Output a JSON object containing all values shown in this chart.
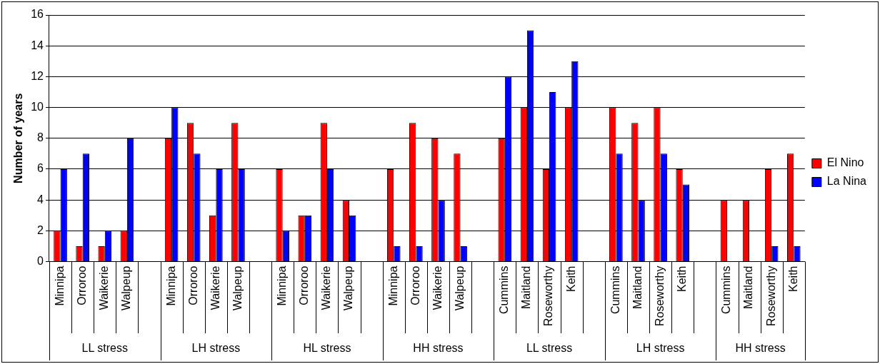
{
  "chart_data": {
    "type": "bar",
    "ylabel": "Number of years",
    "categories": [
      "Minnipa",
      "Orroroo",
      "Waikerie",
      "Walpeup",
      null,
      "Minnipa",
      "Orroroo",
      "Waikerie",
      "Walpeup",
      null,
      "Minnipa",
      "Orroroo",
      "Waikerie",
      "Walpeup",
      null,
      "Minnipa",
      "Orroroo",
      "Waikerie",
      "Walpeup",
      null,
      "Cummins",
      "Maitland",
      "Roseworthy",
      "Keith",
      null,
      "Cummins",
      "Maitland",
      "Roseworthy",
      "Keith",
      null,
      "Cummins",
      "Maitland",
      "Roseworthy",
      "Keith"
    ],
    "series": [
      {
        "name": "El Nino",
        "color": "#ff0000",
        "values": [
          2,
          1,
          1,
          2,
          null,
          8,
          9,
          3,
          9,
          null,
          6,
          3,
          9,
          4,
          null,
          6,
          9,
          8,
          7,
          null,
          8,
          10,
          6,
          10,
          null,
          10,
          9,
          10,
          6,
          null,
          4,
          4,
          6,
          7
        ]
      },
      {
        "name": "La Nina",
        "color": "#0000ff",
        "values": [
          6,
          7,
          2,
          8,
          null,
          10,
          7,
          6,
          6,
          null,
          2,
          3,
          6,
          3,
          null,
          1,
          1,
          4,
          1,
          null,
          12,
          15,
          11,
          13,
          null,
          7,
          4,
          7,
          5,
          null,
          0,
          0,
          1,
          1
        ]
      }
    ],
    "annotations": [
      "LL stress",
      "LH stress",
      "HL stress",
      "HH stress",
      "LL stress",
      "LH stress",
      "HH stress"
    ],
    "ylim": [
      0,
      16
    ],
    "yticks": [
      0,
      2,
      4,
      6,
      8,
      10,
      12,
      14,
      16
    ],
    "grid": "y",
    "legend": "right"
  }
}
